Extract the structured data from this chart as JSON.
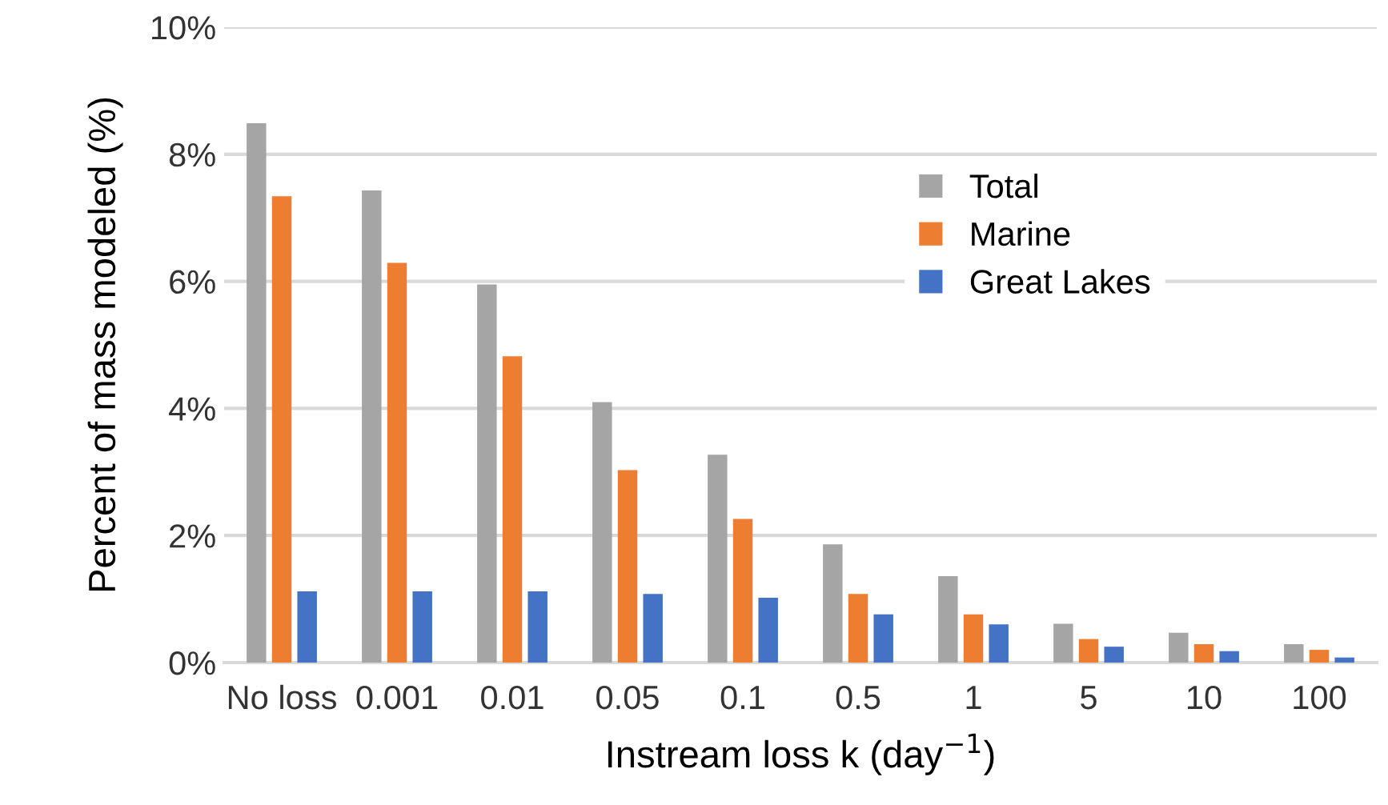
{
  "chart_data": {
    "type": "bar",
    "xlabel": "Instream loss k (day$^{−1}$)",
    "ylabel": "Percent of mass modeled (%)",
    "categories": [
      "No loss",
      "0.001",
      "0.01",
      "0.05",
      "0.1",
      "0.5",
      "1",
      "5",
      "10",
      "100"
    ],
    "series": [
      {
        "name": "Total",
        "color": "#a5a5a5",
        "values": [
          8.49,
          7.43,
          5.95,
          4.1,
          3.27,
          1.86,
          1.36,
          0.61,
          0.47,
          0.29
        ]
      },
      {
        "name": "Marine",
        "color": "#ed7d31",
        "values": [
          7.34,
          6.29,
          4.82,
          3.03,
          2.26,
          1.08,
          0.76,
          0.37,
          0.29,
          0.2
        ]
      },
      {
        "name": "Great Lakes",
        "color": "#4472c4",
        "values": [
          1.12,
          1.12,
          1.12,
          1.08,
          1.02,
          0.76,
          0.6,
          0.25,
          0.18,
          0.08
        ]
      }
    ],
    "ylim": [
      0,
      10
    ],
    "yticks": [
      {
        "value": 0,
        "label": "0%"
      },
      {
        "value": 2,
        "label": "2%"
      },
      {
        "value": 4,
        "label": "4%"
      },
      {
        "value": 6,
        "label": "6%"
      },
      {
        "value": 8,
        "label": "8%"
      },
      {
        "value": 10,
        "label": "10%"
      }
    ],
    "grid": "y",
    "legend": "right"
  }
}
